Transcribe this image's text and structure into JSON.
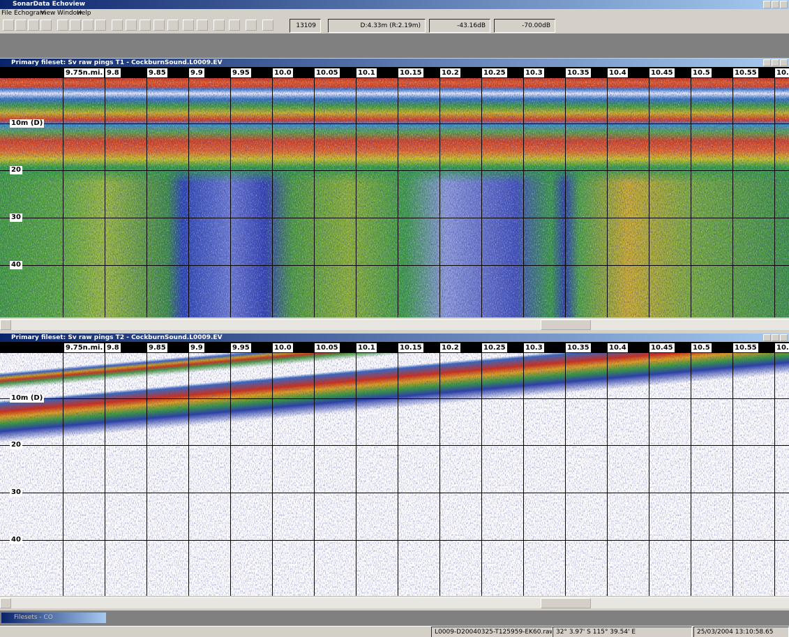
{
  "window_title": "SonarData Echoview",
  "menu": [
    "File",
    "Echogram",
    "View",
    "Window",
    "Help"
  ],
  "toolbar_fields": [
    "13109",
    "D:4.33m (R:2.19m)",
    "-43.16dB",
    "-70.00dB"
  ],
  "echograms": [
    {
      "title": "Primary fileset: Sv raw pings T1 - CockburnSound.L0009.EV",
      "distance_labels": [
        "9.75n.mi.",
        "9.8",
        "9.85",
        "9.9",
        "9.95",
        "10.0",
        "10.05",
        "10.1",
        "10.15",
        "10.2",
        "10.25",
        "10.3",
        "10.35",
        "10.4",
        "10.45",
        "10.5",
        "10.55",
        "10."
      ],
      "depth_labels": [
        "10m (D)",
        "20",
        "30",
        "40"
      ]
    },
    {
      "title": "Primary fileset: Sv raw pings T2 - CockburnSound.L0009.EV",
      "distance_labels": [
        "9.75n.mi.",
        "9.8",
        "9.85",
        "9.9",
        "9.95",
        "10.0",
        "10.05",
        "10.1",
        "10.15",
        "10.2",
        "10.25",
        "10.3",
        "10.35",
        "10.4",
        "10.45",
        "10.5",
        "10.55",
        "10."
      ],
      "depth_labels": [
        "10m (D)",
        "20",
        "30",
        "40"
      ]
    }
  ],
  "taskbar": {
    "label": "Filesets - CO"
  },
  "status_bar": [
    "L0009-D20040325-T125959-EK60.raw",
    "32° 3.97' S 115° 39.54' E",
    "25/03/2004 13:10:58.65"
  ]
}
